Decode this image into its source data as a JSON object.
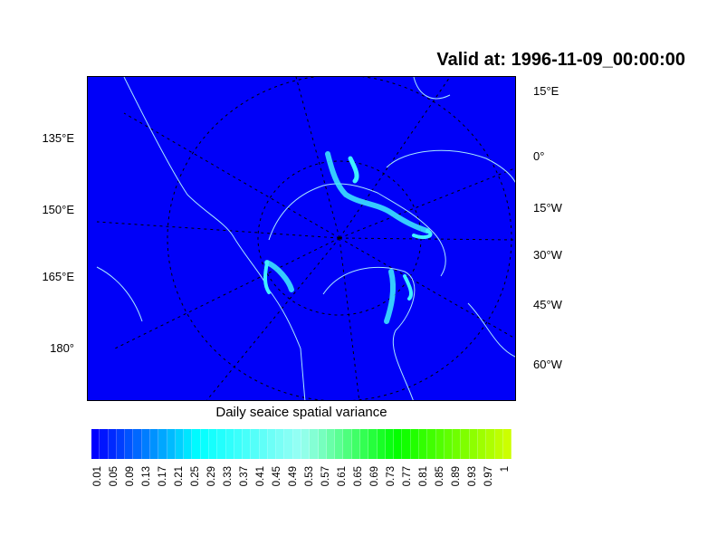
{
  "title": "Valid at: 1996-11-09_00:00:00",
  "map": {
    "projection": "polar-stereographic",
    "background_color": "#0000f8",
    "coastline_color": "#a8e8ff",
    "left_labels": [
      "135°E",
      "150°E",
      "165°E",
      "180°"
    ],
    "right_labels": [
      "15°E",
      "0°",
      "15°W",
      "30°W",
      "45°W",
      "60°W"
    ]
  },
  "colorbar": {
    "title": "Daily seaice spatial variance",
    "labels": [
      "0.01",
      "0.05",
      "0.09",
      "0.13",
      "0.17",
      "0.21",
      "0.25",
      "0.29",
      "0.33",
      "0.37",
      "0.41",
      "0.45",
      "0.49",
      "0.53",
      "0.57",
      "0.61",
      "0.65",
      "0.69",
      "0.73",
      "0.77",
      "0.81",
      "0.85",
      "0.89",
      "0.93",
      "0.97",
      "1"
    ],
    "color_stops": [
      "#0000ff",
      "#00ffff",
      "#98fff4",
      "#00ff00",
      "#ccff00"
    ]
  }
}
